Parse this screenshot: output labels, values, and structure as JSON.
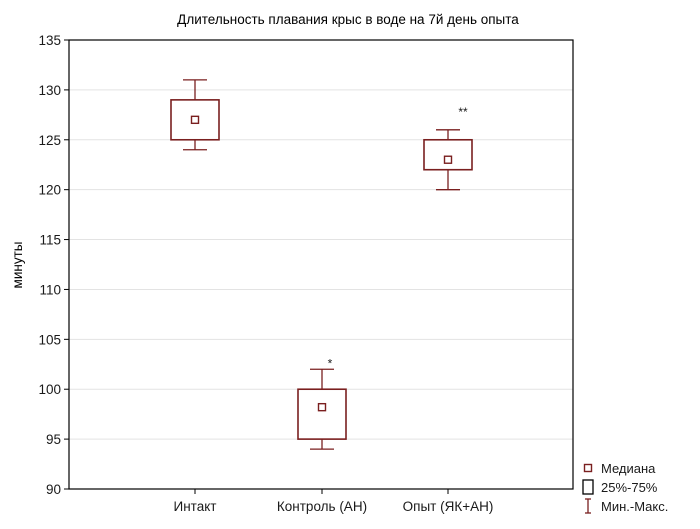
{
  "chart_data": {
    "type": "box",
    "title": "Длительность плавания крыс в воде на 7й день опыта",
    "xlabel": "",
    "ylabel": "минуты",
    "ylim": [
      90,
      135
    ],
    "yticks": [
      "90",
      "95",
      "100",
      "105",
      "110",
      "115",
      "120",
      "125",
      "130",
      "135"
    ],
    "grid": true,
    "categories": [
      "Интакт",
      "Контроль (АН)",
      "Опыт (ЯК+АН)"
    ],
    "boxes": [
      {
        "category": "Интакт",
        "median": 127,
        "q1": 125,
        "q3": 129,
        "min": 124,
        "max": 131,
        "annotation": ""
      },
      {
        "category": "Контроль (АН)",
        "median": 98.2,
        "q1": 95,
        "q3": 100,
        "min": 94,
        "max": 102,
        "annotation": "*"
      },
      {
        "category": "Опыт (ЯК+АН)",
        "median": 123,
        "q1": 122,
        "q3": 125,
        "min": 120,
        "max": 126,
        "annotation": "**"
      }
    ],
    "legend": {
      "position": "bottom-right",
      "items": [
        {
          "label": "Медиана",
          "symbol": "median"
        },
        {
          "label": "25%-75%",
          "symbol": "box"
        },
        {
          "label": "Мин.-Макс.",
          "symbol": "whisker"
        }
      ]
    },
    "colors": {
      "box": "#7a1f1f",
      "grid": "#e3e3e3",
      "axis": "#000000"
    }
  }
}
